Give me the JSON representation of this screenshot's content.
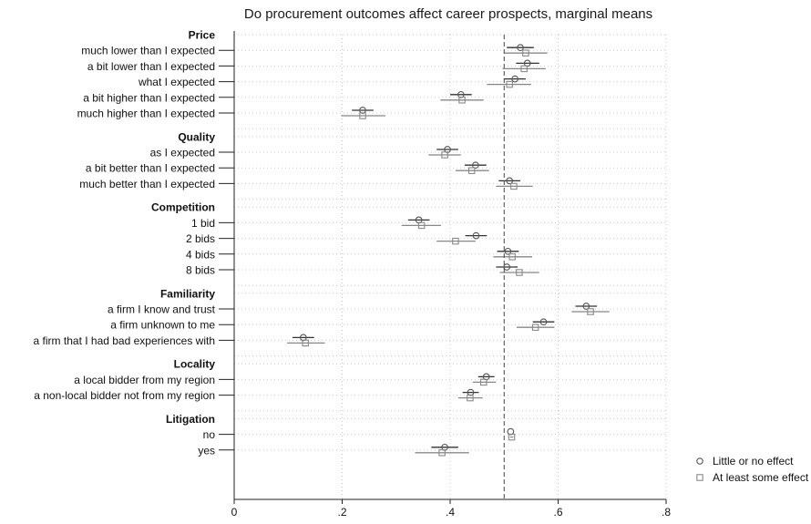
{
  "chart_data": {
    "type": "scatter",
    "title": "Do procurement outcomes affect career prospects, marginal means",
    "xlabel": "",
    "ylabel": "",
    "xlim": [
      0,
      0.8
    ],
    "x_ticks": [
      "0",
      ".2",
      ".4",
      ".6",
      ".8"
    ],
    "reference_line": 0.5,
    "grid": true,
    "legend_position": "right",
    "series": [
      {
        "name": "Little or no effect",
        "marker": "circle",
        "color": "#555555"
      },
      {
        "name": "At least some effect",
        "marker": "square",
        "color": "#888888"
      }
    ],
    "groups": [
      {
        "name": "Price",
        "levels": [
          {
            "label": "much lower than I expected",
            "values": [
              [
                0.53,
                0.505,
                0.555
              ],
              [
                0.54,
                0.5,
                0.58
              ]
            ]
          },
          {
            "label": "a bit lower than I expected",
            "values": [
              [
                0.543,
                0.522,
                0.565
              ],
              [
                0.537,
                0.497,
                0.577
              ]
            ]
          },
          {
            "label": "what I expected",
            "values": [
              [
                0.52,
                0.5,
                0.54
              ],
              [
                0.51,
                0.468,
                0.55
              ]
            ]
          },
          {
            "label": "a bit higher than I expected",
            "values": [
              [
                0.42,
                0.4,
                0.44
              ],
              [
                0.422,
                0.382,
                0.462
              ]
            ]
          },
          {
            "label": "much higher than I expected",
            "values": [
              [
                0.238,
                0.218,
                0.258
              ],
              [
                0.238,
                0.198,
                0.28
              ]
            ]
          }
        ]
      },
      {
        "name": "Quality",
        "levels": [
          {
            "label": "as I expected",
            "values": [
              [
                0.395,
                0.375,
                0.415
              ],
              [
                0.39,
                0.36,
                0.42
              ]
            ]
          },
          {
            "label": "a bit better than I expected",
            "values": [
              [
                0.447,
                0.427,
                0.467
              ],
              [
                0.44,
                0.41,
                0.472
              ]
            ]
          },
          {
            "label": "much better than I expected",
            "values": [
              [
                0.51,
                0.49,
                0.53
              ],
              [
                0.518,
                0.485,
                0.553
              ]
            ]
          }
        ]
      },
      {
        "name": "Competition",
        "levels": [
          {
            "label": "1 bid",
            "values": [
              [
                0.342,
                0.322,
                0.362
              ],
              [
                0.347,
                0.31,
                0.383
              ]
            ]
          },
          {
            "label": "2 bids",
            "values": [
              [
                0.448,
                0.428,
                0.468
              ],
              [
                0.41,
                0.375,
                0.447
              ]
            ]
          },
          {
            "label": "4 bids",
            "values": [
              [
                0.507,
                0.487,
                0.527
              ],
              [
                0.515,
                0.48,
                0.552
              ]
            ]
          },
          {
            "label": "8 bids",
            "values": [
              [
                0.505,
                0.485,
                0.525
              ],
              [
                0.528,
                0.492,
                0.565
              ]
            ]
          }
        ]
      },
      {
        "name": "Familiarity",
        "levels": [
          {
            "label": "a firm I know and trust",
            "values": [
              [
                0.652,
                0.632,
                0.672
              ],
              [
                0.66,
                0.625,
                0.695
              ]
            ]
          },
          {
            "label": "a firm unknown to me",
            "values": [
              [
                0.573,
                0.553,
                0.593
              ],
              [
                0.558,
                0.523,
                0.593
              ]
            ]
          },
          {
            "label": "a firm that I had bad experiences with",
            "values": [
              [
                0.128,
                0.108,
                0.148
              ],
              [
                0.132,
                0.098,
                0.168
              ]
            ]
          }
        ]
      },
      {
        "name": "Locality",
        "levels": [
          {
            "label": "a local bidder from my region",
            "values": [
              [
                0.467,
                0.452,
                0.482
              ],
              [
                0.462,
                0.442,
                0.485
              ]
            ]
          },
          {
            "label": "a non-local bidder not from my region",
            "values": [
              [
                0.438,
                0.423,
                0.453
              ],
              [
                0.437,
                0.415,
                0.46
              ]
            ]
          }
        ]
      },
      {
        "name": "Litigation",
        "levels": [
          {
            "label": "no",
            "values": [
              [
                0.512,
                0.512,
                0.512
              ],
              [
                0.514,
                0.511,
                0.517
              ]
            ]
          },
          {
            "label": "yes",
            "values": [
              [
                0.39,
                0.365,
                0.415
              ],
              [
                0.385,
                0.335,
                0.435
              ]
            ]
          }
        ]
      }
    ]
  }
}
